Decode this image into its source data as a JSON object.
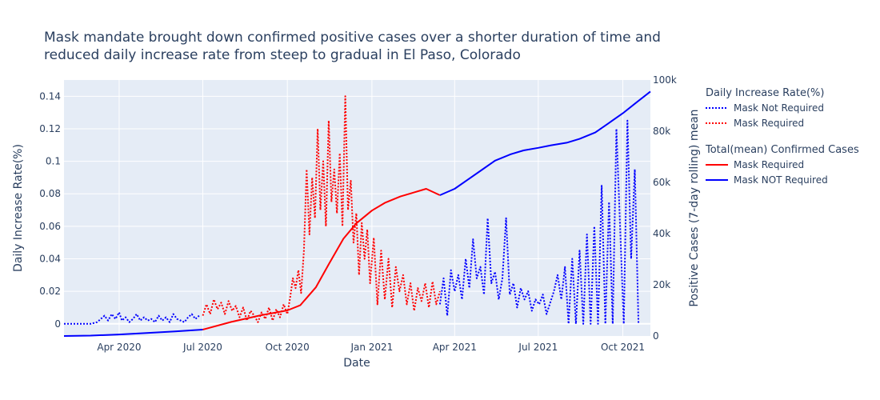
{
  "chart_data": {
    "type": "line",
    "title_line1": "Mask mandate brought down confirmed positive cases over a shorter duration of time and",
    "title_line2": "reduced daily increase rate from steep to gradual in El Paso, Colorado",
    "xlabel": "Date",
    "ylabel_left": "Daily Increase Rate(%)",
    "ylabel_right": "Positive Cases (7-day rolling) mean",
    "xlim": [
      "2020-02-01",
      "2021-10-31"
    ],
    "ylim_left": [
      -0.0075,
      0.15
    ],
    "ylim_right": [
      0,
      100000
    ],
    "x_ticks": [
      {
        "date": "2020-04-01",
        "label": "Apr 2020"
      },
      {
        "date": "2020-07-01",
        "label": "Jul 2020"
      },
      {
        "date": "2020-10-01",
        "label": "Oct 2020"
      },
      {
        "date": "2021-01-01",
        "label": "Jan 2021"
      },
      {
        "date": "2021-04-01",
        "label": "Apr 2021"
      },
      {
        "date": "2021-07-01",
        "label": "Jul 2021"
      },
      {
        "date": "2021-10-01",
        "label": "Oct 2021"
      }
    ],
    "y_ticks_left": [
      {
        "value": 0,
        "label": "0"
      },
      {
        "value": 0.02,
        "label": "0.02"
      },
      {
        "value": 0.04,
        "label": "0.04"
      },
      {
        "value": 0.06,
        "label": "0.06"
      },
      {
        "value": 0.08,
        "label": "0.08"
      },
      {
        "value": 0.1,
        "label": "0.1"
      },
      {
        "value": 0.12,
        "label": "0.12"
      },
      {
        "value": 0.14,
        "label": "0.14"
      }
    ],
    "y_ticks_right": [
      {
        "value": 0,
        "label": "0"
      },
      {
        "value": 20000,
        "label": "20k"
      },
      {
        "value": 40000,
        "label": "40k"
      },
      {
        "value": 60000,
        "label": "60k"
      },
      {
        "value": 80000,
        "label": "80k"
      },
      {
        "value": 100000,
        "label": "100k"
      }
    ],
    "grid": true,
    "legend_placement": "right",
    "legend_groups": [
      {
        "title": "Daily Increase Rate(%)",
        "items": [
          {
            "name": "Mask Not Required",
            "color": "#0000ff",
            "dash": "dot"
          },
          {
            "name": "Mask Required",
            "color": "#ff0000",
            "dash": "dot"
          }
        ]
      },
      {
        "title": "Total(mean) Confirmed Cases",
        "items": [
          {
            "name": "Mask Required",
            "color": "#ff0000",
            "dash": "solid"
          },
          {
            "name": "Mask NOT Required",
            "color": "#0000ff",
            "dash": "solid"
          }
        ]
      }
    ],
    "series": [
      {
        "name": "Mask Not Required",
        "axis": "left",
        "dash": "dot",
        "color": "#0000ff",
        "x": [
          "2020-02-01",
          "2020-02-15",
          "2020-03-01",
          "2020-03-08",
          "2020-03-12",
          "2020-03-16",
          "2020-03-20",
          "2020-03-24",
          "2020-03-28",
          "2020-04-01",
          "2020-04-04",
          "2020-04-08",
          "2020-04-12",
          "2020-04-16",
          "2020-04-20",
          "2020-04-24",
          "2020-04-28",
          "2020-05-02",
          "2020-05-06",
          "2020-05-10",
          "2020-05-14",
          "2020-05-18",
          "2020-05-22",
          "2020-05-26",
          "2020-05-30",
          "2020-06-03",
          "2020-06-07",
          "2020-06-11",
          "2020-06-15",
          "2020-06-19",
          "2020-06-23",
          "2020-06-27"
        ],
        "y": [
          0,
          0,
          0,
          0.001,
          0.003,
          0.005,
          0.002,
          0.006,
          0.003,
          0.007,
          0.002,
          0.004,
          0.001,
          0.003,
          0.006,
          0.002,
          0.004,
          0.002,
          0.003,
          0.001,
          0.005,
          0.002,
          0.004,
          0.001,
          0.006,
          0.003,
          0.002,
          0.001,
          0.004,
          0.006,
          0.003,
          0.005
        ]
      },
      {
        "name": "Mask Required",
        "axis": "left",
        "dash": "dot",
        "color": "#ff0000",
        "x": [
          "2020-07-01",
          "2020-07-05",
          "2020-07-09",
          "2020-07-13",
          "2020-07-17",
          "2020-07-21",
          "2020-07-25",
          "2020-07-29",
          "2020-08-02",
          "2020-08-06",
          "2020-08-10",
          "2020-08-14",
          "2020-08-18",
          "2020-08-22",
          "2020-08-26",
          "2020-08-30",
          "2020-09-03",
          "2020-09-07",
          "2020-09-11",
          "2020-09-15",
          "2020-09-19",
          "2020-09-23",
          "2020-09-27",
          "2020-10-01",
          "2020-10-04",
          "2020-10-07",
          "2020-10-10",
          "2020-10-13",
          "2020-10-16",
          "2020-10-19",
          "2020-10-22",
          "2020-10-25",
          "2020-10-28",
          "2020-10-31",
          "2020-11-03",
          "2020-11-06",
          "2020-11-09",
          "2020-11-12",
          "2020-11-15",
          "2020-11-18",
          "2020-11-21",
          "2020-11-24",
          "2020-11-27",
          "2020-11-30",
          "2020-12-03",
          "2020-12-06",
          "2020-12-09",
          "2020-12-12",
          "2020-12-15",
          "2020-12-18",
          "2020-12-21",
          "2020-12-24",
          "2020-12-27",
          "2020-12-30",
          "2021-01-03",
          "2021-01-07",
          "2021-01-11",
          "2021-01-15",
          "2021-01-19",
          "2021-01-23",
          "2021-01-27",
          "2021-01-31",
          "2021-02-04",
          "2021-02-08",
          "2021-02-12",
          "2021-02-16",
          "2021-02-20",
          "2021-02-24",
          "2021-02-28",
          "2021-03-04",
          "2021-03-08",
          "2021-03-12",
          "2021-03-16"
        ],
        "y": [
          0.005,
          0.012,
          0.006,
          0.015,
          0.009,
          0.013,
          0.006,
          0.014,
          0.008,
          0.011,
          0.004,
          0.01,
          0.002,
          0.008,
          0.005,
          0.001,
          0.007,
          0.003,
          0.01,
          0.002,
          0.009,
          0.004,
          0.012,
          0.006,
          0.016,
          0.028,
          0.022,
          0.033,
          0.019,
          0.045,
          0.095,
          0.055,
          0.09,
          0.065,
          0.12,
          0.07,
          0.1,
          0.06,
          0.125,
          0.075,
          0.095,
          0.068,
          0.105,
          0.06,
          0.14,
          0.07,
          0.088,
          0.05,
          0.068,
          0.03,
          0.062,
          0.04,
          0.058,
          0.025,
          0.053,
          0.012,
          0.045,
          0.015,
          0.04,
          0.01,
          0.035,
          0.02,
          0.03,
          0.012,
          0.025,
          0.008,
          0.022,
          0.014,
          0.025,
          0.01,
          0.026,
          0.012,
          0.02
        ]
      },
      {
        "name": "Mask Not Required",
        "axis": "left",
        "dash": "dot",
        "color": "#0000ff",
        "x": [
          "2021-03-16",
          "2021-03-20",
          "2021-03-24",
          "2021-03-28",
          "2021-04-01",
          "2021-04-05",
          "2021-04-09",
          "2021-04-13",
          "2021-04-17",
          "2021-04-21",
          "2021-04-25",
          "2021-04-29",
          "2021-05-03",
          "2021-05-07",
          "2021-05-11",
          "2021-05-15",
          "2021-05-19",
          "2021-05-23",
          "2021-05-27",
          "2021-05-31",
          "2021-06-04",
          "2021-06-08",
          "2021-06-12",
          "2021-06-16",
          "2021-06-20",
          "2021-06-24",
          "2021-06-28",
          "2021-07-02",
          "2021-07-06",
          "2021-07-10",
          "2021-07-14",
          "2021-07-18",
          "2021-07-22",
          "2021-07-26",
          "2021-07-30",
          "2021-08-03",
          "2021-08-07",
          "2021-08-11",
          "2021-08-15",
          "2021-08-19",
          "2021-08-23",
          "2021-08-27",
          "2021-08-31",
          "2021-09-04",
          "2021-09-08",
          "2021-09-12",
          "2021-09-16",
          "2021-09-20",
          "2021-09-24",
          "2021-09-28",
          "2021-10-02",
          "2021-10-06",
          "2021-10-10",
          "2021-10-14",
          "2021-10-18"
        ],
        "y": [
          0.012,
          0.028,
          0.005,
          0.033,
          0.02,
          0.03,
          0.015,
          0.04,
          0.022,
          0.052,
          0.028,
          0.035,
          0.018,
          0.065,
          0.025,
          0.032,
          0.015,
          0.028,
          0.065,
          0.018,
          0.025,
          0.01,
          0.022,
          0.015,
          0.02,
          0.008,
          0.015,
          0.012,
          0.018,
          0.006,
          0.013,
          0.02,
          0.03,
          0.015,
          0.035,
          0,
          0.04,
          0,
          0.045,
          0,
          0.055,
          0,
          0.06,
          0,
          0.085,
          0,
          0.075,
          0,
          0.12,
          0.06,
          0,
          0.125,
          0.04,
          0.095,
          0
        ]
      },
      {
        "name": "Mask NOT Required",
        "axis": "right",
        "dash": "solid",
        "color": "#0000ff",
        "x": [
          "2020-02-01",
          "2020-03-01",
          "2020-04-01",
          "2020-05-01",
          "2020-06-01",
          "2020-07-01"
        ],
        "y": [
          0,
          150,
          600,
          1200,
          1800,
          2500
        ]
      },
      {
        "name": "Mask Required",
        "axis": "right",
        "dash": "solid",
        "color": "#ff0000",
        "x": [
          "2020-07-01",
          "2020-08-01",
          "2020-09-01",
          "2020-10-01",
          "2020-10-15",
          "2020-11-01",
          "2020-11-15",
          "2020-12-01",
          "2020-12-15",
          "2021-01-01",
          "2021-01-15",
          "2021-02-01",
          "2021-03-01",
          "2021-03-16"
        ],
        "y": [
          2500,
          5500,
          8000,
          10000,
          12000,
          19000,
          28000,
          38000,
          44000,
          49000,
          52000,
          54500,
          57500,
          55000
        ]
      },
      {
        "name": "Mask NOT Required",
        "axis": "right",
        "dash": "solid",
        "color": "#0000ff",
        "x": [
          "2021-03-16",
          "2021-04-01",
          "2021-04-15",
          "2021-05-01",
          "2021-05-15",
          "2021-06-01",
          "2021-06-15",
          "2021-07-01",
          "2021-07-15",
          "2021-08-01",
          "2021-08-15",
          "2021-09-01",
          "2021-09-15",
          "2021-10-01",
          "2021-10-15",
          "2021-10-31"
        ],
        "y": [
          55000,
          57500,
          61000,
          65000,
          68500,
          71000,
          72500,
          73500,
          74500,
          75500,
          77000,
          79500,
          83000,
          87000,
          91000,
          95500
        ]
      }
    ]
  }
}
